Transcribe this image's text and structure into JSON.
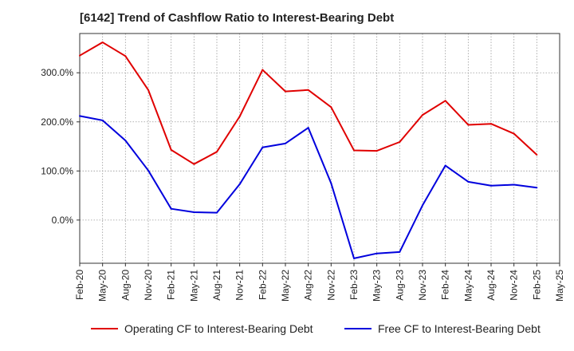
{
  "title": "[6142]  Trend of Cashflow Ratio to Interest-Bearing Debt",
  "chart_data": {
    "type": "line",
    "x": [
      "Feb-20",
      "May-20",
      "Aug-20",
      "Nov-20",
      "Feb-21",
      "May-21",
      "Aug-21",
      "Nov-21",
      "Feb-22",
      "May-22",
      "Aug-22",
      "Nov-22",
      "Feb-23",
      "May-23",
      "Aug-23",
      "Nov-23",
      "Feb-24",
      "May-24",
      "Aug-24",
      "Nov-24",
      "Feb-25"
    ],
    "x_ticks": [
      "Feb-20",
      "May-20",
      "Aug-20",
      "Nov-20",
      "Feb-21",
      "May-21",
      "Aug-21",
      "Nov-21",
      "Feb-22",
      "May-22",
      "Aug-22",
      "Nov-22",
      "Feb-23",
      "May-23",
      "Aug-23",
      "Nov-23",
      "Feb-24",
      "May-24",
      "Aug-24",
      "Nov-24",
      "Feb-25",
      "May-25"
    ],
    "y_ticks": [
      0,
      100,
      200,
      300
    ],
    "y_tick_labels": [
      "0.0%",
      "100.0%",
      "200.0%",
      "300.0%"
    ],
    "ylim": [
      -88,
      380
    ],
    "grid": true,
    "legend_position": "bottom",
    "series": [
      {
        "name": "Operating CF to Interest-Bearing Debt",
        "color": "#e00000",
        "values": [
          335,
          362,
          334,
          265,
          143,
          114,
          139,
          211,
          306,
          262,
          265,
          230,
          142,
          141,
          159,
          214,
          243,
          194,
          196,
          176,
          133
        ]
      },
      {
        "name": "Free CF to Interest-Bearing Debt",
        "color": "#0000dd",
        "values": [
          212,
          203,
          162,
          101,
          23,
          16,
          15,
          73,
          148,
          156,
          188,
          75,
          -78,
          -68,
          -65,
          30,
          111,
          78,
          70,
          72,
          66
        ]
      }
    ]
  }
}
